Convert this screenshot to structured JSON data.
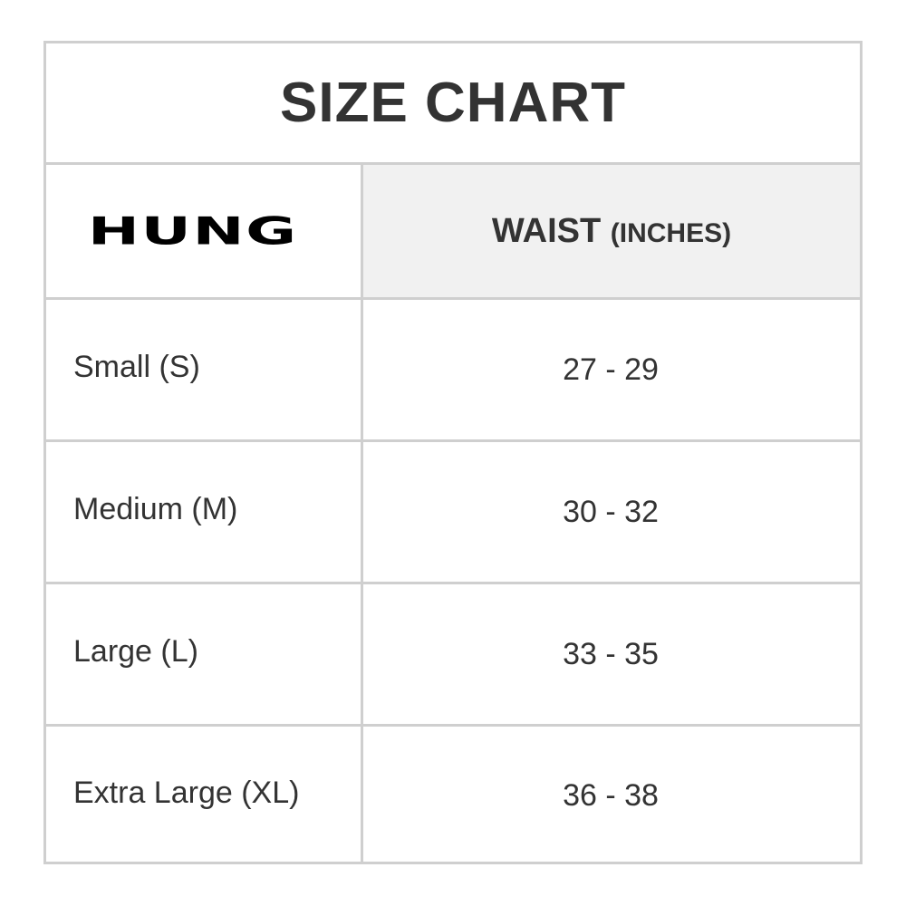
{
  "title": "SIZE CHART",
  "brand_logo": "HUNG",
  "header": {
    "column_label": "WAIST",
    "column_unit": "(INCHES)"
  },
  "rows": [
    {
      "size": "Small (S)",
      "waist": "27 - 29"
    },
    {
      "size": "Medium (M)",
      "waist": "30 - 32"
    },
    {
      "size": "Large (L)",
      "waist": "33 - 35"
    },
    {
      "size": "Extra Large (XL)",
      "waist": "36 - 38"
    }
  ],
  "colors": {
    "border": "#cfcfcf",
    "header_bg": "#f1f1f1",
    "text": "#333333"
  }
}
